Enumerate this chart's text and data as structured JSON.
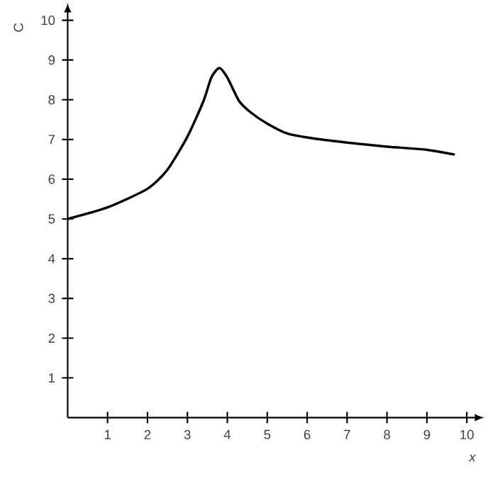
{
  "chart_data": {
    "type": "line",
    "xlabel": "x",
    "ylabel": "C",
    "x": [
      0,
      1,
      2,
      2.5,
      3,
      3.4,
      3.6,
      3.8,
      4.0,
      4.3,
      4.6,
      5,
      5.5,
      6,
      7,
      8,
      9,
      9.7
    ],
    "values": [
      5.0,
      5.29,
      5.76,
      6.24,
      7.07,
      7.96,
      8.56,
      8.8,
      8.56,
      7.96,
      7.67,
      7.4,
      7.15,
      7.05,
      6.92,
      6.82,
      6.74,
      6.62
    ],
    "color": "#000000",
    "marker": "none",
    "line_style": "solid",
    "xlim": [
      0,
      10.2
    ],
    "ylim": [
      0,
      10.2
    ],
    "xticks": [
      1,
      2,
      3,
      4,
      5,
      6,
      7,
      8,
      9,
      10
    ],
    "yticks": [
      1,
      2,
      3,
      4,
      5,
      6,
      7,
      8,
      9,
      10
    ]
  }
}
